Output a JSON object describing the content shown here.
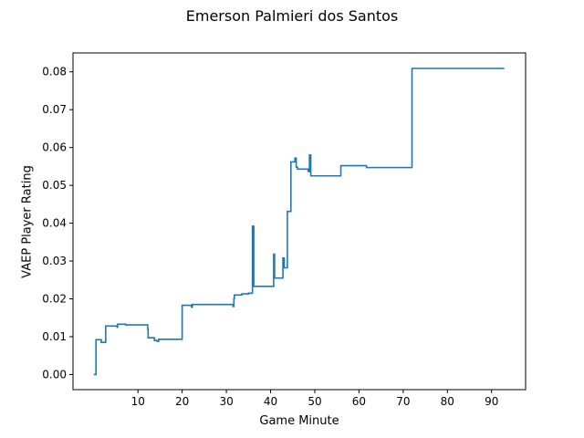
{
  "chart_data": {
    "type": "line",
    "title": "Emerson Palmieri dos Santos",
    "xlabel": "Game Minute",
    "ylabel": "VAEP Player Rating",
    "xlim": [
      -4.7,
      97.7
    ],
    "ylim": [
      -0.004,
      0.085
    ],
    "x_ticks": [
      10,
      20,
      30,
      40,
      50,
      60,
      70,
      80,
      90
    ],
    "y_ticks": [
      0.0,
      0.01,
      0.02,
      0.03,
      0.04,
      0.05,
      0.06,
      0.07,
      0.08
    ],
    "y_tick_labels": [
      "0.00",
      "0.01",
      "0.02",
      "0.03",
      "0.04",
      "0.05",
      "0.06",
      "0.07",
      "0.08"
    ],
    "grid": false,
    "line_color": "#1f77b4",
    "series": [
      {
        "step": "post",
        "points": [
          [
            0.0,
            0.0
          ],
          [
            0.5,
            0.0092
          ],
          [
            1.7,
            0.0085
          ],
          [
            2.7,
            0.0128
          ],
          [
            5.3,
            0.0125
          ],
          [
            5.4,
            0.0133
          ],
          [
            7.2,
            0.0131
          ],
          [
            12.2,
            0.012
          ],
          [
            12.3,
            0.0097
          ],
          [
            13.7,
            0.009
          ],
          [
            14.3,
            0.0088
          ],
          [
            14.7,
            0.0093
          ],
          [
            20.0,
            0.0183
          ],
          [
            22.1,
            0.0178
          ],
          [
            22.3,
            0.0185
          ],
          [
            31.5,
            0.018
          ],
          [
            31.7,
            0.02
          ],
          [
            31.8,
            0.021
          ],
          [
            33.5,
            0.0213
          ],
          [
            35.0,
            0.0215
          ],
          [
            35.9,
            0.0392
          ],
          [
            36.2,
            0.0233
          ],
          [
            40.7,
            0.0318
          ],
          [
            40.9,
            0.0255
          ],
          [
            42.8,
            0.0308
          ],
          [
            43.1,
            0.0282
          ],
          [
            43.8,
            0.0431
          ],
          [
            44.6,
            0.0562
          ],
          [
            45.5,
            0.0572
          ],
          [
            45.8,
            0.0548
          ],
          [
            46.1,
            0.0543
          ],
          [
            48.5,
            0.0537
          ],
          [
            48.8,
            0.058
          ],
          [
            49.1,
            0.0525
          ],
          [
            55.9,
            0.0552
          ],
          [
            61.7,
            0.0547
          ],
          [
            72.0,
            0.0809
          ],
          [
            92.9,
            0.0809
          ]
        ]
      }
    ]
  }
}
